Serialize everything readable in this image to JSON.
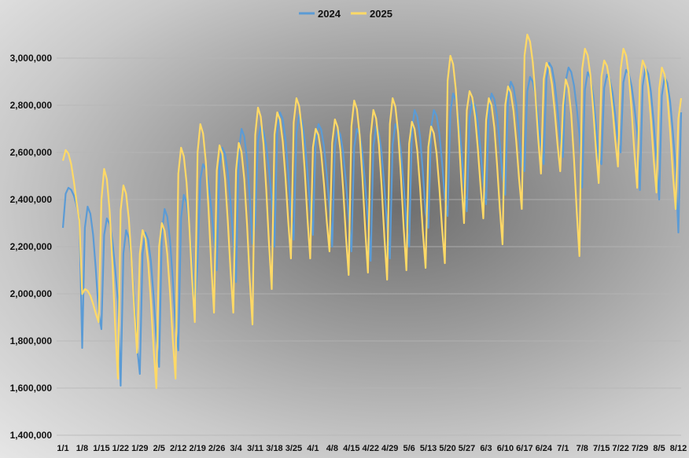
{
  "chart_data": {
    "type": "line",
    "title": "",
    "xlabel": "",
    "ylabel": "",
    "ylim": [
      1400000,
      3100000
    ],
    "yticks": [
      "1,400,000",
      "1,600,000",
      "1,800,000",
      "2,000,000",
      "2,200,000",
      "2,400,000",
      "2,600,000",
      "2,800,000",
      "3,000,000"
    ],
    "ytick_values": [
      1400000,
      1600000,
      1800000,
      2000000,
      2200000,
      2400000,
      2600000,
      2800000,
      3000000
    ],
    "x_tick_labels": [
      "1/1",
      "1/8",
      "1/15",
      "1/22",
      "1/29",
      "2/5",
      "2/12",
      "2/19",
      "2/26",
      "3/4",
      "3/11",
      "3/18",
      "3/25",
      "4/1",
      "4/8",
      "4/15",
      "4/22",
      "4/29",
      "5/6",
      "5/13",
      "5/20",
      "5/27",
      "6/3",
      "6/10",
      "6/17",
      "6/24",
      "7/1",
      "7/8",
      "7/15",
      "7/22",
      "7/29",
      "8/5",
      "8/12"
    ],
    "grid": true,
    "legend": "top-center",
    "day_count": 226,
    "series": [
      {
        "name": "2024",
        "color": "#5b9bd5",
        "weekly_peaks": [
          2450000,
          2370000,
          2320000,
          2270000,
          2260000,
          2360000,
          2420000,
          2550000,
          2620000,
          2700000,
          2710000,
          2770000,
          2760000,
          2720000,
          2700000,
          2700000,
          2710000,
          2720000,
          2780000,
          2780000,
          2850000,
          2820000,
          2850000,
          2900000,
          2920000,
          2980000,
          2960000,
          2940000,
          2930000,
          2950000,
          2960000,
          2920000,
          2860000
        ],
        "weekly_troughs": [
          2280000,
          1770000,
          1850000,
          1610000,
          1660000,
          1690000,
          1760000,
          2130000,
          2100000,
          2050000,
          2300000,
          2200000,
          2230000,
          2250000,
          2200000,
          2180000,
          2140000,
          2150000,
          2200000,
          2280000,
          2330000,
          2350000,
          2380000,
          2420000,
          2520000,
          2550000,
          2580000,
          2450000,
          2550000,
          2600000,
          2440000,
          2400000,
          2260000
        ]
      },
      {
        "name": "2025",
        "color": "#ffd966",
        "weekly_peaks": [
          2610000,
          2020000,
          2530000,
          2460000,
          2270000,
          2300000,
          2620000,
          2720000,
          2630000,
          2640000,
          2790000,
          2770000,
          2830000,
          2700000,
          2740000,
          2820000,
          2780000,
          2830000,
          2730000,
          2710000,
          3010000,
          2860000,
          2830000,
          2880000,
          3100000,
          2980000,
          2910000,
          3040000,
          2990000,
          3040000,
          2990000,
          2960000,
          2830000
        ],
        "weekly_troughs": [
          2310000,
          1880000,
          1640000,
          1750000,
          1600000,
          1640000,
          1880000,
          1920000,
          1920000,
          1870000,
          2020000,
          2150000,
          2150000,
          2180000,
          2080000,
          2090000,
          2060000,
          2100000,
          2110000,
          2130000,
          2300000,
          2320000,
          2210000,
          2360000,
          2510000,
          2520000,
          2160000,
          2470000,
          2540000,
          2450000,
          2430000,
          2360000,
          2250000
        ]
      }
    ]
  }
}
